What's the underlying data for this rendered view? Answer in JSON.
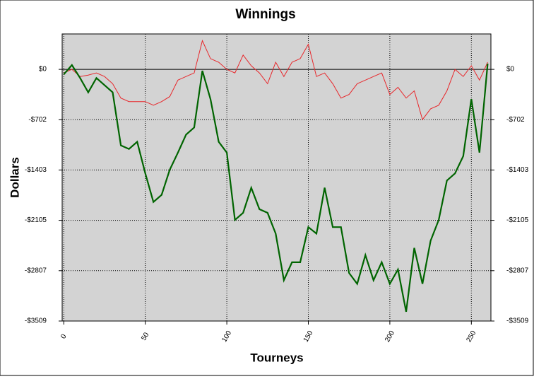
{
  "chart_data": {
    "type": "line",
    "title": "Winnings",
    "x_label": "Tourneys",
    "y_label": "Dollars",
    "x": [
      0,
      5,
      10,
      15,
      20,
      25,
      30,
      35,
      40,
      45,
      50,
      55,
      60,
      65,
      70,
      75,
      80,
      85,
      90,
      95,
      100,
      105,
      110,
      115,
      120,
      125,
      130,
      135,
      140,
      145,
      150,
      155,
      160,
      165,
      170,
      175,
      180,
      185,
      190,
      195,
      200,
      205,
      210,
      215,
      220,
      225,
      230,
      235,
      240,
      245,
      250,
      255,
      260
    ],
    "series": [
      {
        "color": "#006400",
        "values": [
          -70,
          60,
          -120,
          -320,
          -120,
          -220,
          -320,
          -1060,
          -1110,
          -1010,
          -1450,
          -1850,
          -1750,
          -1400,
          -1160,
          -910,
          -810,
          -20,
          -415,
          -1010,
          -1160,
          -2100,
          -2000,
          -1650,
          -1950,
          -2000,
          -2290,
          -2940,
          -2690,
          -2690,
          -2200,
          -2290,
          -1650,
          -2200,
          -2200,
          -2840,
          -2990,
          -2590,
          -2940,
          -2690,
          -2990,
          -2790,
          -3380,
          -2490,
          -2990,
          -2390,
          -2100,
          -1550,
          -1450,
          -1210,
          -415,
          -1160,
          80
        ]
      },
      {
        "color": "#e8262a",
        "values": [
          -50,
          0,
          -100,
          -80,
          -50,
          -100,
          -200,
          -400,
          -450,
          -450,
          -450,
          -500,
          -450,
          -380,
          -150,
          -100,
          -50,
          400,
          150,
          100,
          0,
          -50,
          200,
          50,
          -50,
          -200,
          100,
          -100,
          100,
          150,
          350,
          -100,
          -50,
          -200,
          -400,
          -350,
          -200,
          -150,
          -100,
          -50,
          -350,
          -250,
          -400,
          -300,
          -700,
          -550,
          -500,
          -300,
          0,
          -100,
          50,
          -150,
          100
        ]
      }
    ],
    "xlim": [
      -1,
      262
    ],
    "ylim": [
      -3509,
      494
    ],
    "xticks": [
      0,
      50,
      100,
      150,
      200,
      250
    ],
    "yticks": [
      {
        "value": 0,
        "label": "$0"
      },
      {
        "value": -702,
        "label": "-$702"
      },
      {
        "value": -1403,
        "label": "-$1403"
      },
      {
        "value": -2105,
        "label": "-$2105"
      },
      {
        "value": -2807,
        "label": "-$2807"
      },
      {
        "value": -3509,
        "label": "-$3509"
      }
    ],
    "grid": true
  }
}
